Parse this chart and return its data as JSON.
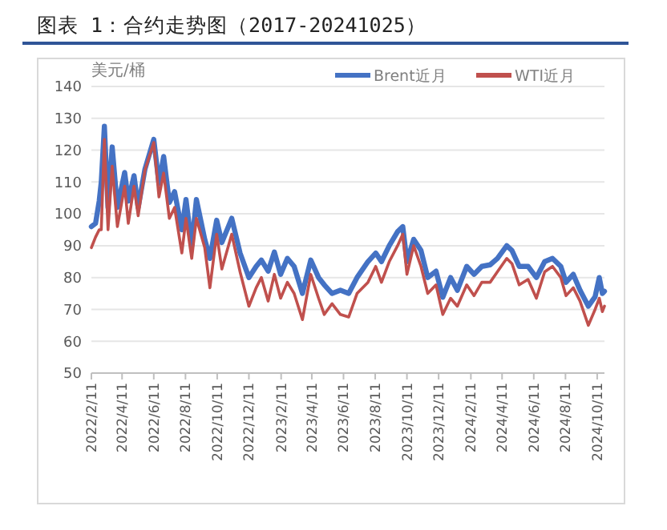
{
  "chart_data": {
    "type": "line",
    "title": "图表 1：合约走势图（2017-20241025）",
    "ylabel": "美元/桶",
    "x": [
      "2022-02-11",
      "2022-02-19",
      "2022-02-26",
      "2022-03-02",
      "2022-03-08",
      "2022-03-15",
      "2022-03-23",
      "2022-04-02",
      "2022-04-16",
      "2022-04-23",
      "2022-05-04",
      "2022-05-12",
      "2022-05-25",
      "2022-06-11",
      "2022-06-21",
      "2022-06-30",
      "2022-07-11",
      "2022-07-21",
      "2022-08-04",
      "2022-08-12",
      "2022-08-23",
      "2022-09-01",
      "2022-09-17",
      "2022-09-27",
      "2022-10-10",
      "2022-10-20",
      "2022-11-08",
      "2022-11-24",
      "2022-12-11",
      "2022-12-25",
      "2023-01-04",
      "2023-01-17",
      "2023-01-29",
      "2023-02-10",
      "2023-02-23",
      "2023-03-08",
      "2023-03-24",
      "2023-04-09",
      "2023-04-24",
      "2023-05-05",
      "2023-05-20",
      "2023-06-05",
      "2023-06-21",
      "2023-07-07",
      "2023-07-28",
      "2023-08-12",
      "2023-08-23",
      "2023-09-07",
      "2023-09-23",
      "2023-10-03",
      "2023-10-11",
      "2023-10-24",
      "2023-11-07",
      "2023-11-20",
      "2023-12-06",
      "2023-12-19",
      "2024-01-03",
      "2024-01-16",
      "2024-02-03",
      "2024-02-17",
      "2024-03-03",
      "2024-03-19",
      "2024-04-02",
      "2024-04-20",
      "2024-04-30",
      "2024-05-14",
      "2024-05-31",
      "2024-06-16",
      "2024-07-02",
      "2024-07-17",
      "2024-08-02",
      "2024-08-12",
      "2024-08-26",
      "2024-09-08",
      "2024-09-24",
      "2024-10-07",
      "2024-10-15",
      "2024-10-21",
      "2024-10-25"
    ],
    "series": [
      {
        "name": "Brent近月",
        "color": "#4472c4",
        "values": [
          96,
          97,
          104,
          110,
          127.5,
          102,
          121,
          102,
          113,
          104,
          112,
          102,
          114,
          123.4,
          109.5,
          118,
          103.6,
          107,
          95,
          104.5,
          90,
          104.5,
          92,
          86,
          98,
          91,
          98.6,
          87.7,
          80,
          83.5,
          85.5,
          82,
          88,
          81,
          86,
          83.5,
          75,
          85.5,
          80,
          77.7,
          75,
          76,
          75,
          80,
          85,
          87.7,
          85,
          90,
          94.4,
          96,
          85,
          92,
          88.5,
          80,
          82,
          73.8,
          80,
          76,
          83.5,
          81,
          83.5,
          84,
          86,
          90,
          88.5,
          83.5,
          83.5,
          80,
          85,
          86,
          83.5,
          78.5,
          81,
          76,
          71,
          74,
          80,
          75,
          75.7
        ]
      },
      {
        "name": "WTI近月",
        "color": "#c0504d",
        "values": [
          89.4,
          92.7,
          95,
          95,
          123.4,
          95,
          115,
          96,
          108.7,
          97,
          108.7,
          99.4,
          113.7,
          122.4,
          105.3,
          112.8,
          98.6,
          102,
          87.7,
          98.6,
          86,
          98.6,
          89.4,
          76.8,
          93.6,
          82.7,
          93.6,
          81.8,
          71,
          76.8,
          80,
          72.6,
          81,
          73.5,
          78.5,
          75,
          66.8,
          81,
          73.5,
          68.4,
          71.8,
          68.4,
          67.6,
          75,
          78.5,
          83.5,
          78.5,
          85,
          90,
          93.6,
          81,
          90,
          83.5,
          75,
          77.7,
          68.4,
          73.5,
          71,
          77.7,
          74.3,
          78.5,
          78.5,
          81.8,
          86,
          84.4,
          77.7,
          79.4,
          73.5,
          81.8,
          83.5,
          80,
          74.3,
          76.8,
          72.6,
          65,
          70,
          73.5,
          69.3,
          71
        ]
      }
    ],
    "xlim": [
      "2022-02-11",
      "2024-10-25"
    ],
    "xticks": [
      {
        "value": "2022-02-11",
        "label": "2022/2/11"
      },
      {
        "value": "2022-04-11",
        "label": "2022/4/11"
      },
      {
        "value": "2022-06-11",
        "label": "2022/6/11"
      },
      {
        "value": "2022-08-11",
        "label": "2022/8/11"
      },
      {
        "value": "2022-10-11",
        "label": "2022/10/11"
      },
      {
        "value": "2022-12-11",
        "label": "2022/12/11"
      },
      {
        "value": "2023-02-11",
        "label": "2023/2/11"
      },
      {
        "value": "2023-04-11",
        "label": "2023/4/11"
      },
      {
        "value": "2023-06-11",
        "label": "2023/6/11"
      },
      {
        "value": "2023-08-11",
        "label": "2023/8/11"
      },
      {
        "value": "2023-10-11",
        "label": "2023/10/11"
      },
      {
        "value": "2023-12-11",
        "label": "2023/12/11"
      },
      {
        "value": "2024-02-11",
        "label": "2024/2/11"
      },
      {
        "value": "2024-04-11",
        "label": "2024/4/11"
      },
      {
        "value": "2024-06-11",
        "label": "2024/6/11"
      },
      {
        "value": "2024-08-11",
        "label": "2024/8/11"
      },
      {
        "value": "2024-10-11",
        "label": "2024/10/11"
      }
    ],
    "ylim": [
      50,
      140
    ],
    "yticks": [
      50,
      60,
      70,
      80,
      90,
      100,
      110,
      120,
      130,
      140
    ],
    "grid": "y",
    "legend": "top right",
    "marker": "none",
    "line_style": "solid"
  }
}
